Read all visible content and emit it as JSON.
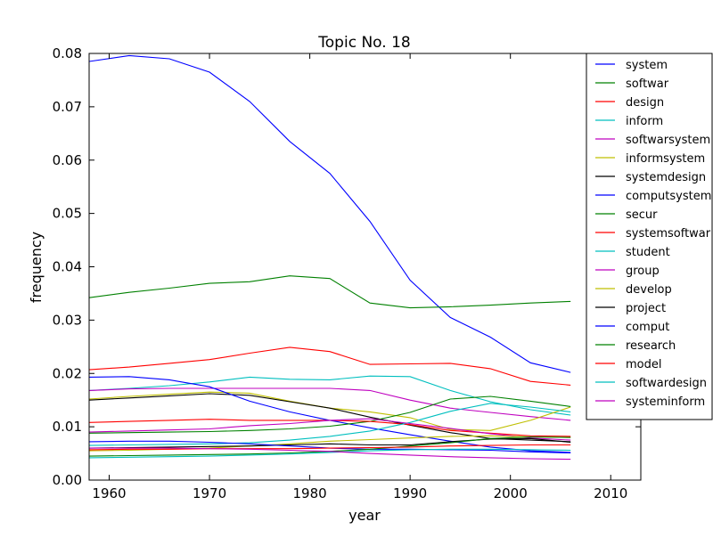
{
  "chart_data": {
    "type": "line",
    "title": "Topic No. 18",
    "xlabel": "year",
    "ylabel": "frequency",
    "xlim": [
      1958,
      2013
    ],
    "ylim": [
      0,
      0.08
    ],
    "xticks": [
      1960,
      1970,
      1980,
      1990,
      2000,
      2010
    ],
    "yticks": [
      0.0,
      0.01,
      0.02,
      0.03,
      0.04,
      0.05,
      0.06,
      0.07,
      0.08
    ],
    "xtick_labels": [
      "1960",
      "1970",
      "1980",
      "1990",
      "2000",
      "2010"
    ],
    "ytick_labels": [
      "0.00",
      "0.01",
      "0.02",
      "0.03",
      "0.04",
      "0.05",
      "0.06",
      "0.07",
      "0.08"
    ],
    "grid": false,
    "legend_position": "top-right",
    "x": [
      1958,
      1962,
      1966,
      1970,
      1974,
      1978,
      1982,
      1986,
      1990,
      1994,
      1998,
      2002,
      2006
    ],
    "series": [
      {
        "name": "system",
        "color": "#0000ff",
        "values": [
          0.0785,
          0.0796,
          0.079,
          0.0765,
          0.071,
          0.0635,
          0.0575,
          0.0485,
          0.0375,
          0.0305,
          0.0268,
          0.022,
          0.0202
        ]
      },
      {
        "name": "softwar",
        "color": "#008000",
        "values": [
          0.0342,
          0.0352,
          0.036,
          0.0369,
          0.0372,
          0.0383,
          0.0378,
          0.0332,
          0.0323,
          0.0325,
          0.0328,
          0.0332,
          0.0335
        ]
      },
      {
        "name": "design",
        "color": "#ff0000",
        "values": [
          0.0207,
          0.0212,
          0.0219,
          0.0226,
          0.0238,
          0.0249,
          0.0241,
          0.0217,
          0.0218,
          0.0219,
          0.0209,
          0.0185,
          0.0178
        ]
      },
      {
        "name": "inform",
        "color": "#00bfbf",
        "values": [
          0.0168,
          0.0172,
          0.0177,
          0.0184,
          0.0193,
          0.0189,
          0.0188,
          0.0195,
          0.0194,
          0.0168,
          0.0147,
          0.0132,
          0.0122
        ]
      },
      {
        "name": "softwarsystem",
        "color": "#bf00bf",
        "values": [
          0.0168,
          0.0171,
          0.0172,
          0.0172,
          0.0172,
          0.0172,
          0.0172,
          0.0168,
          0.015,
          0.0135,
          0.0127,
          0.0119,
          0.0112
        ]
      },
      {
        "name": "informsystem",
        "color": "#bfbf00",
        "values": [
          0.0152,
          0.0157,
          0.0161,
          0.0165,
          0.0163,
          0.0148,
          0.0135,
          0.0128,
          0.0117,
          0.0095,
          0.0093,
          0.0112,
          0.0137
        ]
      },
      {
        "name": "systemdesign",
        "color": "#000000",
        "values": [
          0.015,
          0.0154,
          0.0158,
          0.0162,
          0.0159,
          0.0147,
          0.0135,
          0.0118,
          0.0103,
          0.0089,
          0.0078,
          0.0075,
          0.0072
        ]
      },
      {
        "name": "computsystem",
        "color": "#0000ff",
        "values": [
          0.0193,
          0.0194,
          0.0188,
          0.0175,
          0.0148,
          0.0128,
          0.0112,
          0.0098,
          0.0085,
          0.0073,
          0.0062,
          0.0055,
          0.0052
        ]
      },
      {
        "name": "secur",
        "color": "#008000",
        "values": [
          0.0088,
          0.0089,
          0.009,
          0.0091,
          0.0093,
          0.0096,
          0.0101,
          0.011,
          0.0127,
          0.0152,
          0.0157,
          0.0148,
          0.0138
        ]
      },
      {
        "name": "systemsoftwar",
        "color": "#ff0000",
        "values": [
          0.0108,
          0.011,
          0.0112,
          0.0114,
          0.0112,
          0.0112,
          0.0112,
          0.011,
          0.0104,
          0.0093,
          0.0088,
          0.0083,
          0.0082
        ]
      },
      {
        "name": "student",
        "color": "#00bfbf",
        "values": [
          0.0065,
          0.0066,
          0.0067,
          0.0068,
          0.007,
          0.0075,
          0.0082,
          0.0092,
          0.0108,
          0.0129,
          0.0144,
          0.0137,
          0.0128
        ]
      },
      {
        "name": "group",
        "color": "#bf00bf",
        "values": [
          0.009,
          0.0092,
          0.0094,
          0.0096,
          0.0102,
          0.0106,
          0.0112,
          0.0115,
          0.0106,
          0.0097,
          0.0087,
          0.0079,
          0.0075
        ]
      },
      {
        "name": "develop",
        "color": "#bfbf00",
        "values": [
          0.0055,
          0.0056,
          0.0058,
          0.006,
          0.0064,
          0.0068,
          0.0073,
          0.0076,
          0.0079,
          0.0082,
          0.0083,
          0.0081,
          0.008
        ]
      },
      {
        "name": "project",
        "color": "#000000",
        "values": [
          0.006,
          0.0061,
          0.0062,
          0.0063,
          0.0064,
          0.0066,
          0.0068,
          0.0066,
          0.0066,
          0.0072,
          0.0077,
          0.0078,
          0.0071
        ]
      },
      {
        "name": "comput",
        "color": "#0000ff",
        "values": [
          0.0072,
          0.0073,
          0.0073,
          0.0071,
          0.0068,
          0.0064,
          0.006,
          0.0058,
          0.0058,
          0.0057,
          0.0056,
          0.0053,
          0.0051
        ]
      },
      {
        "name": "research",
        "color": "#008000",
        "values": [
          0.0045,
          0.0046,
          0.0047,
          0.0048,
          0.0049,
          0.0051,
          0.0054,
          0.0058,
          0.0064,
          0.007,
          0.0078,
          0.0081,
          0.008
        ]
      },
      {
        "name": "model",
        "color": "#ff0000",
        "values": [
          0.0057,
          0.0058,
          0.0058,
          0.0059,
          0.0059,
          0.0059,
          0.006,
          0.0061,
          0.0062,
          0.0064,
          0.0065,
          0.0066,
          0.0066
        ]
      },
      {
        "name": "softwardesign",
        "color": "#00bfbf",
        "values": [
          0.0042,
          0.0043,
          0.0044,
          0.0045,
          0.0047,
          0.0049,
          0.0052,
          0.0055,
          0.0057,
          0.0058,
          0.0058,
          0.0057,
          0.0056
        ]
      },
      {
        "name": "systeminform",
        "color": "#bf00bf",
        "values": [
          0.006,
          0.006,
          0.006,
          0.0059,
          0.0058,
          0.0056,
          0.0054,
          0.005,
          0.0047,
          0.0044,
          0.0042,
          0.004,
          0.0039
        ]
      }
    ]
  }
}
